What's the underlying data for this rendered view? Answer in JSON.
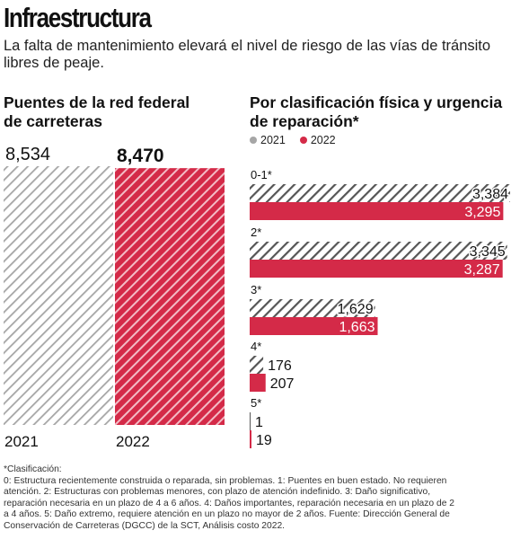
{
  "header": {
    "title": "Infraestructura",
    "subtitle_line1": "La falta de mantenimiento elevará el nivel de riesgo de las vías de tránsito",
    "subtitle_line2": "libres de peaje."
  },
  "colors": {
    "series_2021": "#a6a6a6",
    "series_2022": "#d42a48"
  },
  "left_panel": {
    "title_line1": "Puentes de la red federal",
    "title_line2": "de carreteras"
  },
  "right_panel": {
    "title_line1": "Por clasificación física y urgencia",
    "title_line2": "de reparación*"
  },
  "legend": {
    "label_2021": "2021",
    "label_2022": "2022"
  },
  "chart_data": [
    {
      "type": "bar",
      "categories": [
        "2021",
        "2022"
      ],
      "values": [
        8534,
        8470
      ],
      "value_labels": [
        "8,534",
        "8,470"
      ],
      "title": "Puentes de la red federal de carreteras",
      "ylim": [
        0,
        8534
      ]
    },
    {
      "type": "bar",
      "orientation": "horizontal",
      "title": "Por clasificación física y urgencia de reparación*",
      "categories": [
        "0-1*",
        "2*",
        "3*",
        "4*",
        "5*"
      ],
      "series": [
        {
          "name": "2021",
          "values": [
            3384,
            3345,
            1629,
            176,
            1
          ],
          "labels": [
            "3,384",
            "3,345",
            "1,629",
            "176",
            "1"
          ]
        },
        {
          "name": "2022",
          "values": [
            3295,
            3287,
            1663,
            207,
            19
          ],
          "labels": [
            "3,295",
            "3,287",
            "1,663",
            "207",
            "19"
          ]
        }
      ],
      "xlim": [
        0,
        3384
      ],
      "legend_position": "top-left"
    }
  ],
  "footnote": {
    "lines": [
      "*Clasificación:",
      "0: Estructura recientemente construida o reparada, sin problemas. 1: Puentes en buen estado. No requieren",
      "atención. 2: Estructuras con problemas menores, con plazo de atención indefinido. 3: Daño significativo,",
      "reparación necesaria en un plazo de 4 a 6 años. 4: Daños importantes, reparación necesaria en un plazo de 2",
      "a 4 años. 5: Daño extremo, requiere atención en un plazo no mayor de 2 años. Fuente: Dirección General de",
      "Conservación de Carreteras (DGCC) de la SCT, Análisis costo 2022."
    ]
  }
}
